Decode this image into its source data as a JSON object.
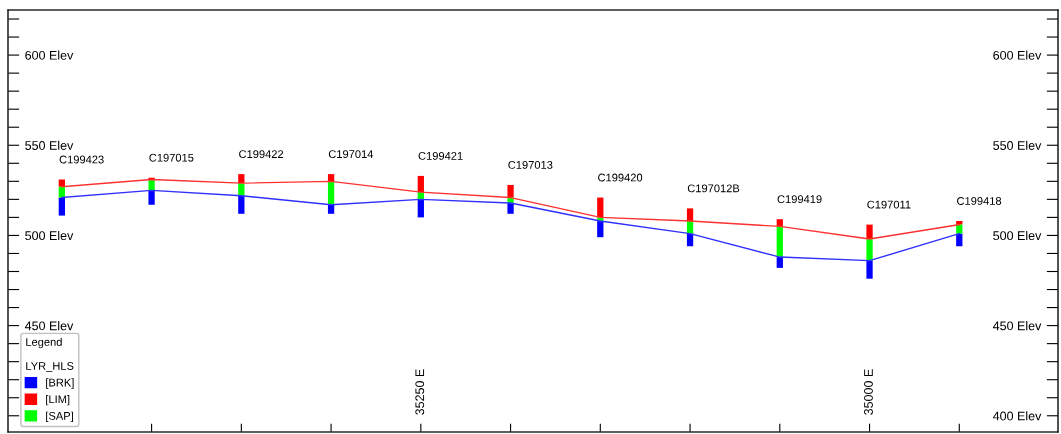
{
  "chart_data": {
    "type": "bar",
    "legend": "bottom left",
    "legend_title": "LYR_HLS",
    "grid": false,
    "x": [
      35450,
      35400,
      35350,
      35300,
      35250,
      35200,
      35150,
      35100,
      35050,
      35000,
      34950
    ],
    "series": [
      {
        "name": "[BRK]",
        "color": "#0000ff",
        "base": [
          511,
          517,
          512,
          512,
          510,
          512,
          499,
          494,
          482,
          476,
          494
        ],
        "values": [
          10,
          8,
          10,
          5,
          10,
          6,
          9,
          7,
          6,
          10,
          7
        ]
      },
      {
        "name": "[LIM]",
        "color": "#ff0000",
        "base": [
          527,
          531,
          529,
          530,
          524,
          521,
          510,
          508,
          505,
          498,
          506
        ],
        "values": [
          4,
          1,
          5,
          4,
          9,
          7,
          11,
          7,
          4,
          8,
          2
        ]
      },
      {
        "name": "[SAP]",
        "color": "#00ff00",
        "base": [
          521,
          525,
          522,
          517,
          520,
          518,
          508,
          501,
          488,
          486,
          501
        ],
        "values": [
          6,
          6,
          7,
          13,
          4,
          3,
          2,
          7,
          17,
          12,
          5
        ]
      },
      {
        "type": "line",
        "color": "#ff3030",
        "x": [
          35450,
          35400,
          35350,
          35300,
          35250,
          35200,
          35150,
          35100,
          35050,
          35000,
          34950
        ],
        "values": [
          527,
          531,
          529,
          530,
          524,
          521,
          510,
          508,
          505,
          498,
          506
        ]
      },
      {
        "type": "line",
        "color": "#3030ff",
        "x": [
          35450,
          35400,
          35350,
          35300,
          35250,
          35200,
          35150,
          35100,
          35050,
          35000,
          34950
        ],
        "values": [
          521,
          525,
          522,
          517,
          520,
          518,
          508,
          501,
          488,
          486,
          501
        ]
      }
    ],
    "xlim": [
      35480,
      34895
    ],
    "xticks": [
      {
        "value": 35400,
        "label": null
      },
      {
        "value": 35350,
        "label": null
      },
      {
        "value": 35300,
        "label": null
      },
      {
        "value": 35250,
        "label": "35250 E"
      },
      {
        "value": 35200,
        "label": null
      },
      {
        "value": 35150,
        "label": null
      },
      {
        "value": 35100,
        "label": null
      },
      {
        "value": 35050,
        "label": null
      },
      {
        "value": 35000,
        "label": "35000 E"
      },
      {
        "value": 34950,
        "label": null
      }
    ],
    "ylim": [
      391,
      625
    ],
    "yticks": [
      {
        "value": 400,
        "label": null
      },
      {
        "value": 410,
        "label": null
      },
      {
        "value": 420,
        "label": null
      },
      {
        "value": 430,
        "label": null
      },
      {
        "value": 440,
        "label": null
      },
      {
        "value": 450,
        "label": "450 Elev"
      },
      {
        "value": 460,
        "label": null
      },
      {
        "value": 470,
        "label": null
      },
      {
        "value": 480,
        "label": null
      },
      {
        "value": 490,
        "label": null
      },
      {
        "value": 500,
        "label": "500 Elev"
      },
      {
        "value": 510,
        "label": null
      },
      {
        "value": 520,
        "label": null
      },
      {
        "value": 530,
        "label": null
      },
      {
        "value": 540,
        "label": null
      },
      {
        "value": 550,
        "label": "550 Elev"
      },
      {
        "value": 560,
        "label": null
      },
      {
        "value": 570,
        "label": null
      },
      {
        "value": 580,
        "label": null
      },
      {
        "value": 590,
        "label": null
      },
      {
        "value": 600,
        "label": "600 Elev"
      },
      {
        "value": 610,
        "label": null
      },
      {
        "value": 620,
        "label": null
      }
    ],
    "y2lim": [
      391,
      625
    ],
    "y2ticks": [
      {
        "value": 400,
        "label": "400 Elev"
      },
      {
        "value": 410,
        "label": null
      },
      {
        "value": 420,
        "label": null
      },
      {
        "value": 430,
        "label": null
      },
      {
        "value": 440,
        "label": null
      },
      {
        "value": 450,
        "label": "450 Elev"
      },
      {
        "value": 460,
        "label": null
      },
      {
        "value": 470,
        "label": null
      },
      {
        "value": 480,
        "label": null
      },
      {
        "value": 490,
        "label": null
      },
      {
        "value": 500,
        "label": "500 Elev"
      },
      {
        "value": 510,
        "label": null
      },
      {
        "value": 520,
        "label": null
      },
      {
        "value": 530,
        "label": null
      },
      {
        "value": 540,
        "label": null
      },
      {
        "value": 550,
        "label": "550 Elev"
      },
      {
        "value": 560,
        "label": null
      },
      {
        "value": 570,
        "label": null
      },
      {
        "value": 580,
        "label": null
      },
      {
        "value": 590,
        "label": null
      },
      {
        "value": 600,
        "label": "600 Elev"
      },
      {
        "value": 610,
        "label": null
      },
      {
        "value": 620,
        "label": null
      }
    ],
    "annotations": [
      "Legend",
      "C199423",
      "C197015",
      "C199422",
      "C197014",
      "C199421",
      "C197013",
      "C199420",
      "C197012B",
      "C199419",
      "C197011",
      "C199418"
    ]
  }
}
